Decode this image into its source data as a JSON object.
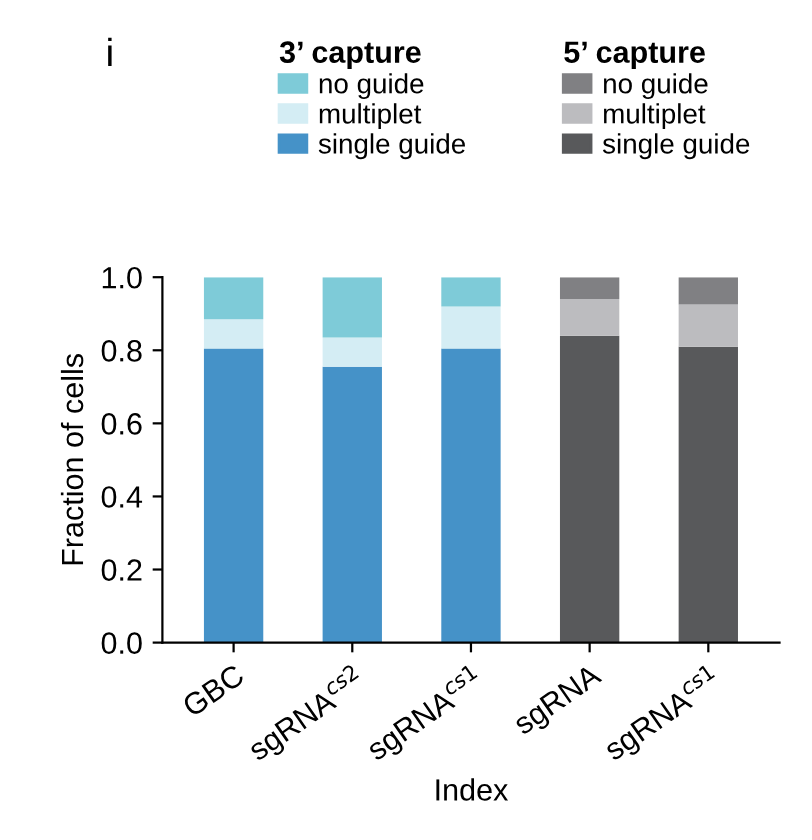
{
  "chart_data": {
    "type": "bar",
    "stacked": true,
    "xlabel": "Index",
    "ylabel": "Fraction of cells",
    "categories": [
      "GBC",
      "sgRNA$^{cs2}$",
      "sgRNA$^{cs1}$",
      "sgRNA",
      "sgRNA$^{cs1}$"
    ],
    "series": [
      {
        "name": "single guide",
        "color": "#4592c8",
        "values": [
          0.805,
          0.755,
          0.805,
          null,
          null
        ]
      },
      {
        "name": "multiplet",
        "color": "#d4edf4",
        "values": [
          0.08,
          0.08,
          0.115,
          null,
          null
        ]
      },
      {
        "name": "no guide",
        "color": "#7ecbd8",
        "values": [
          0.115,
          0.165,
          0.08,
          null,
          null
        ]
      },
      {
        "name": "single guide",
        "color": "#58595b",
        "values": [
          null,
          null,
          null,
          0.84,
          0.81
        ]
      },
      {
        "name": "multiplet",
        "color": "#bcbcbf",
        "values": [
          null,
          null,
          null,
          0.1,
          0.115
        ]
      },
      {
        "name": "no guide",
        "color": "#808083",
        "values": [
          null,
          null,
          null,
          0.06,
          0.075
        ]
      }
    ],
    "ylim": [
      0,
      1.0
    ],
    "yticks": [
      {
        "value": 0,
        "label": "0.0"
      },
      0.2,
      0.4,
      0.6,
      0.8,
      {
        "value": 1.0,
        "label": "1.0"
      }
    ],
    "grid": false,
    "legend": "top",
    "annotations": [
      "i",
      "3’ capture",
      "5’ capture"
    ]
  }
}
